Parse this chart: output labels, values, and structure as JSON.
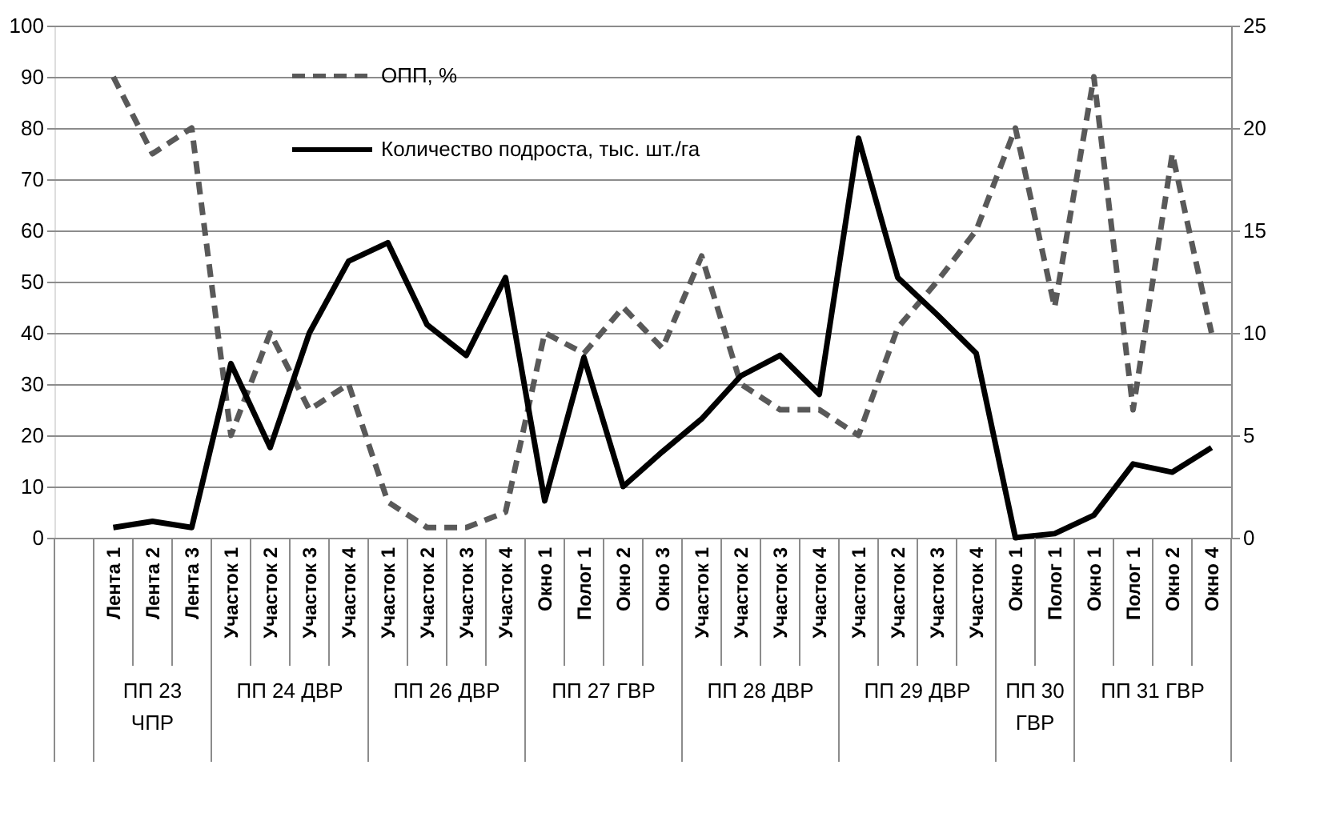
{
  "chart_data": {
    "type": "line",
    "categories": [
      null,
      "Лента 1",
      "Лента 2",
      "Лента 3",
      "Участок 1",
      "Участок 2",
      "Участок 3",
      "Участок 4",
      "Участок 1",
      "Участок 2",
      "Участок 3",
      "Участок 4",
      "Окно 1",
      "Полог 1",
      "Окно 2",
      "Окно 3",
      "Участок 1",
      "Участок 2",
      "Участок 3",
      "Участок 4",
      "Участок 1",
      "Участок 2",
      "Участок 3",
      "Участок 4",
      "Окно 1",
      "Полог 1",
      "Окно 1",
      "Полог 1",
      "Окно 2",
      "Окно 4"
    ],
    "series": [
      {
        "name": "ОПП, %",
        "color": "#595959",
        "line_style": "dashed",
        "values": [
          null,
          90,
          75,
          80,
          20,
          40,
          25,
          30,
          7,
          2,
          2,
          5,
          40,
          36,
          45,
          37,
          55,
          30,
          25,
          25,
          20,
          41,
          50,
          60,
          80,
          45,
          90,
          25,
          75,
          40
        ]
      },
      {
        "name": "Количество подроста, тыс. шт./га",
        "color": "#000000",
        "line_style": "solid",
        "axis": "y2",
        "values": [
          null,
          0.5,
          0.8,
          0.5,
          8.5,
          4.4,
          10,
          13.5,
          14.4,
          10.4,
          8.9,
          12.7,
          1.8,
          8.8,
          2.5,
          4.2,
          5.8,
          7.9,
          8.9,
          7.0,
          19.5,
          12.7,
          10.9,
          9.0,
          0,
          0.2,
          1.1,
          3.6,
          3.2,
          4.4
        ]
      }
    ],
    "ylim": [
      0,
      100
    ],
    "yticks": [
      0,
      10,
      20,
      30,
      40,
      50,
      60,
      70,
      80,
      90,
      100
    ],
    "y2lim": [
      0,
      25
    ],
    "y2ticks": [
      0,
      5,
      10,
      15,
      20,
      25
    ],
    "grid": "y",
    "legend": "top",
    "marker": "none",
    "annotations": [
      "ПП 23 ЧПР",
      "ПП 24 ДВР",
      "ПП 26 ДВР",
      "ПП 27 ГВР",
      "ПП 28 ДВР",
      "ПП 29 ДВР",
      "ПП 30 ГВР",
      "ПП 31 ГВР"
    ]
  }
}
